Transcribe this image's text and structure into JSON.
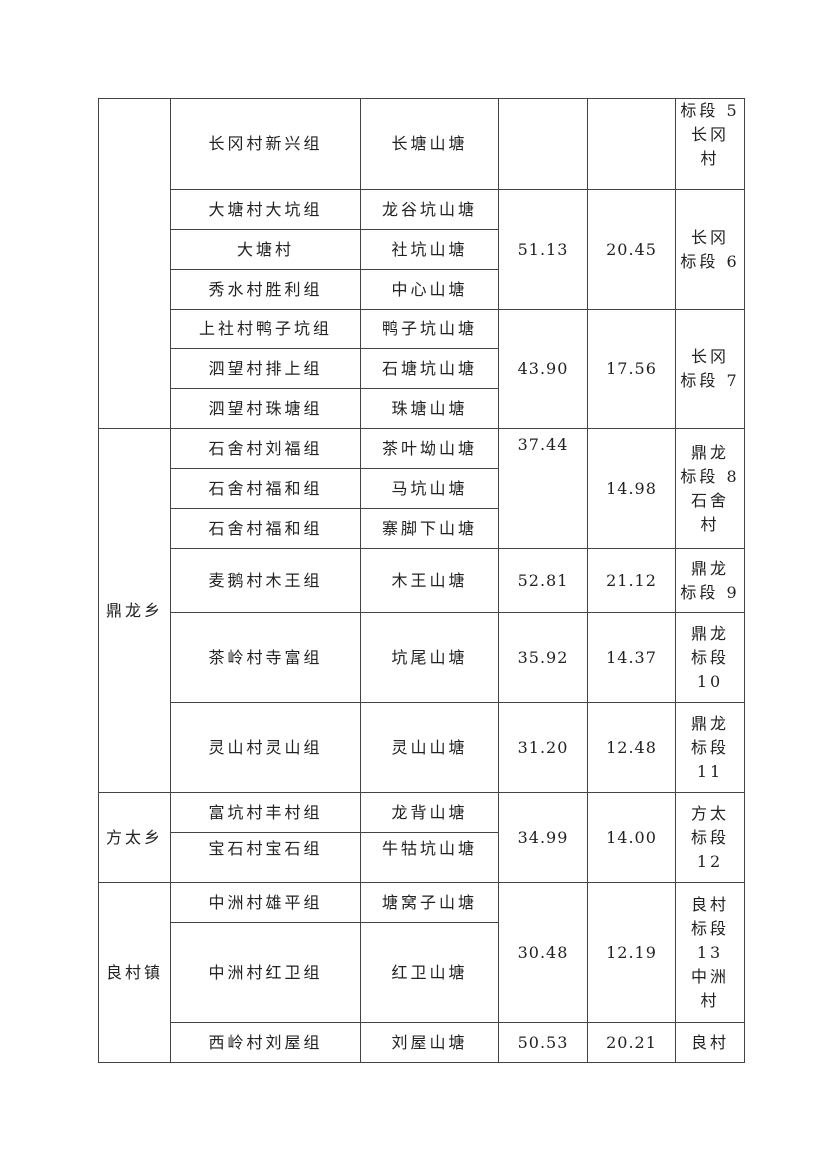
{
  "rows": [
    {
      "village": "长冈村新兴组",
      "pond": "长塘山塘",
      "area1": "",
      "area2": "",
      "section": [
        "标段 5",
        "长冈",
        "村"
      ]
    },
    {
      "village": "大塘村大坑组",
      "pond": "龙谷坑山塘",
      "area1": "51.13",
      "area2": "20.45",
      "section": [
        "长冈",
        "标段 6"
      ]
    },
    {
      "village": "大塘村",
      "pond": "社坑山塘"
    },
    {
      "village": "秀水村胜利组",
      "pond": "中心山塘"
    },
    {
      "village": "上社村鸭子坑组",
      "pond": "鸭子坑山塘",
      "area1": "43.90",
      "area2": "17.56",
      "section": [
        "长冈",
        "标段 7"
      ]
    },
    {
      "village": "泗望村排上组",
      "pond": "石塘坑山塘"
    },
    {
      "village": "泗望村珠塘组",
      "pond": "珠塘山塘"
    },
    {
      "township": "鼎龙乡",
      "village": "石舍村刘福组",
      "pond": "茶叶坳山塘",
      "area1": "37.44",
      "area2": "14.98",
      "section": [
        "鼎龙",
        "标段 8",
        "石舍",
        "村"
      ]
    },
    {
      "village": "石舍村福和组",
      "pond": "马坑山塘"
    },
    {
      "village": "石舍村福和组",
      "pond": "寨脚下山塘"
    },
    {
      "village": "麦鹅村木王组",
      "pond": "木王山塘",
      "area1": "52.81",
      "area2": "21.12",
      "section": [
        "鼎龙",
        "标段 9"
      ]
    },
    {
      "village": "茶岭村寺富组",
      "pond": "坑尾山塘",
      "area1": "35.92",
      "area2": "14.37",
      "section": [
        "鼎龙",
        "标段",
        "10"
      ]
    },
    {
      "village": "灵山村灵山组",
      "pond": "灵山山塘",
      "area1": "31.20",
      "area2": "12.48",
      "section": [
        "鼎龙",
        "标段",
        "11"
      ]
    },
    {
      "township": "方太乡",
      "village": "富坑村丰村组",
      "pond": "龙背山塘",
      "area1": "34.99",
      "area2": "14.00",
      "section": [
        "方太",
        "标段",
        "12"
      ]
    },
    {
      "village": "宝石村宝石组",
      "pond": "牛牯坑山塘"
    },
    {
      "township": "良村镇",
      "village": "中洲村雄平组",
      "pond": "塘窝子山塘",
      "area1": "30.48",
      "area2": "12.19",
      "section": [
        "良村",
        "标段",
        "13",
        "中洲",
        "村"
      ]
    },
    {
      "village": "中洲村红卫组",
      "pond": "红卫山塘"
    },
    {
      "village": "西岭村刘屋组",
      "pond": "刘屋山塘",
      "area1": "50.53",
      "area2": "20.21",
      "section": [
        "良村"
      ]
    }
  ]
}
